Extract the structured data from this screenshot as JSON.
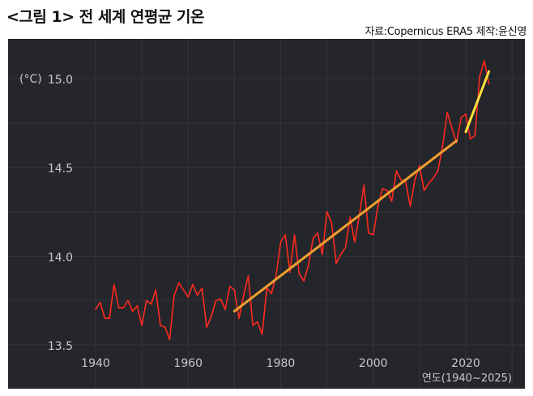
{
  "header": {
    "title": "<그림 1> 전 세계 연평균 기온",
    "source": "자료:Copernicus ERA5  제작:윤신영"
  },
  "colors": {
    "background": "#25262b",
    "series": "#ff2a1f",
    "trend_long": "#f0a030",
    "trend_recent": "#ffe040",
    "grid": "#34353b"
  },
  "chart_data": {
    "type": "line",
    "title": "<그림 1> 전 세계 연평균 기온",
    "ylabel": "(°C)",
    "xlabel": "연도(1940~2025)",
    "xlim": [
      1936,
      2031
    ],
    "ylim": [
      13.45,
      15.22
    ],
    "x_ticks": [
      1940,
      1960,
      1980,
      2000,
      2020
    ],
    "y_ticks": [
      13.5,
      14.0,
      14.5,
      15.0
    ],
    "y_tick_labels": [
      "13.5",
      "14.0",
      "14.5",
      "15.0"
    ],
    "grid": true,
    "x": [
      1940,
      1941,
      1942,
      1943,
      1944,
      1945,
      1946,
      1947,
      1948,
      1949,
      1950,
      1951,
      1952,
      1953,
      1954,
      1955,
      1956,
      1957,
      1958,
      1959,
      1960,
      1961,
      1962,
      1963,
      1964,
      1965,
      1966,
      1967,
      1968,
      1969,
      1970,
      1971,
      1972,
      1973,
      1974,
      1975,
      1976,
      1977,
      1978,
      1979,
      1980,
      1981,
      1982,
      1983,
      1984,
      1985,
      1986,
      1987,
      1988,
      1989,
      1990,
      1991,
      1992,
      1993,
      1994,
      1995,
      1996,
      1997,
      1998,
      1999,
      2000,
      2001,
      2002,
      2003,
      2004,
      2005,
      2006,
      2007,
      2008,
      2009,
      2010,
      2011,
      2012,
      2013,
      2014,
      2015,
      2016,
      2017,
      2018,
      2019,
      2020,
      2021,
      2022,
      2023,
      2024,
      2025
    ],
    "series": [
      {
        "values": [
          13.7,
          13.74,
          13.65,
          13.65,
          13.84,
          13.71,
          13.71,
          13.75,
          13.69,
          13.72,
          13.61,
          13.75,
          13.73,
          13.81,
          13.61,
          13.6,
          13.53,
          13.78,
          13.85,
          13.81,
          13.77,
          13.84,
          13.78,
          13.82,
          13.6,
          13.66,
          13.75,
          13.76,
          13.7,
          13.83,
          13.81,
          13.65,
          13.78,
          13.89,
          13.61,
          13.63,
          13.56,
          13.82,
          13.79,
          13.89,
          14.08,
          14.12,
          13.91,
          14.12,
          13.9,
          13.86,
          13.95,
          14.1,
          14.13,
          14.01,
          14.25,
          14.19,
          13.96,
          14.01,
          14.05,
          14.22,
          14.08,
          14.23,
          14.4,
          14.13,
          14.12,
          14.28,
          14.38,
          14.37,
          14.31,
          14.48,
          14.43,
          14.42,
          14.28,
          14.43,
          14.51,
          14.37,
          14.41,
          14.44,
          14.48,
          14.62,
          14.81,
          14.72,
          14.64,
          14.78,
          14.8,
          14.66,
          14.68,
          15.01,
          15.1,
          14.97
        ]
      }
    ],
    "trend_lines": [
      {
        "x": [
          1970,
          2018
        ],
        "y": [
          13.69,
          14.65
        ]
      },
      {
        "x": [
          2020,
          2025
        ],
        "y": [
          14.7,
          15.04
        ]
      }
    ]
  }
}
